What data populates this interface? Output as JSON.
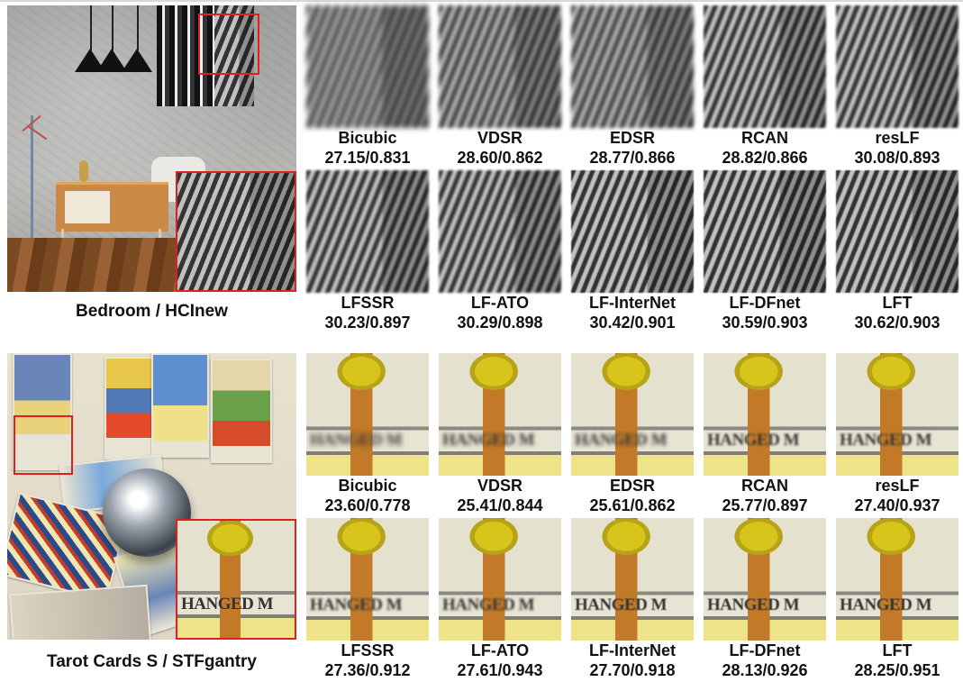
{
  "groups": [
    {
      "scene": "Bedroom / HCInew",
      "inset_text": "",
      "rows": [
        [
          {
            "method": "Bicubic",
            "score": "27.15/0.831"
          },
          {
            "method": "VDSR",
            "score": "28.60/0.862"
          },
          {
            "method": "EDSR",
            "score": "28.77/0.866"
          },
          {
            "method": "RCAN",
            "score": "28.82/0.866"
          },
          {
            "method": "resLF",
            "score": "30.08/0.893"
          }
        ],
        [
          {
            "method": "LFSSR",
            "score": "30.23/0.897"
          },
          {
            "method": "LF-ATO",
            "score": "30.29/0.898"
          },
          {
            "method": "LF-InterNet",
            "score": "30.42/0.901"
          },
          {
            "method": "LF-DFnet",
            "score": "30.59/0.903"
          },
          {
            "method": "LFT",
            "score": "30.62/0.903"
          }
        ]
      ]
    },
    {
      "scene": "Tarot Cards S / STFgantry",
      "inset_text": "HANGED M",
      "rows": [
        [
          {
            "method": "Bicubic",
            "score": "23.60/0.778"
          },
          {
            "method": "VDSR",
            "score": "25.41/0.844"
          },
          {
            "method": "EDSR",
            "score": "25.61/0.862"
          },
          {
            "method": "RCAN",
            "score": "25.77/0.897"
          },
          {
            "method": "resLF",
            "score": "27.40/0.937"
          }
        ],
        [
          {
            "method": "LFSSR",
            "score": "27.36/0.912"
          },
          {
            "method": "LF-ATO",
            "score": "27.61/0.943"
          },
          {
            "method": "LF-InterNet",
            "score": "27.70/0.918"
          },
          {
            "method": "LF-DFnet",
            "score": "28.13/0.926"
          },
          {
            "method": "LFT",
            "score": "28.25/0.951"
          }
        ]
      ]
    }
  ]
}
